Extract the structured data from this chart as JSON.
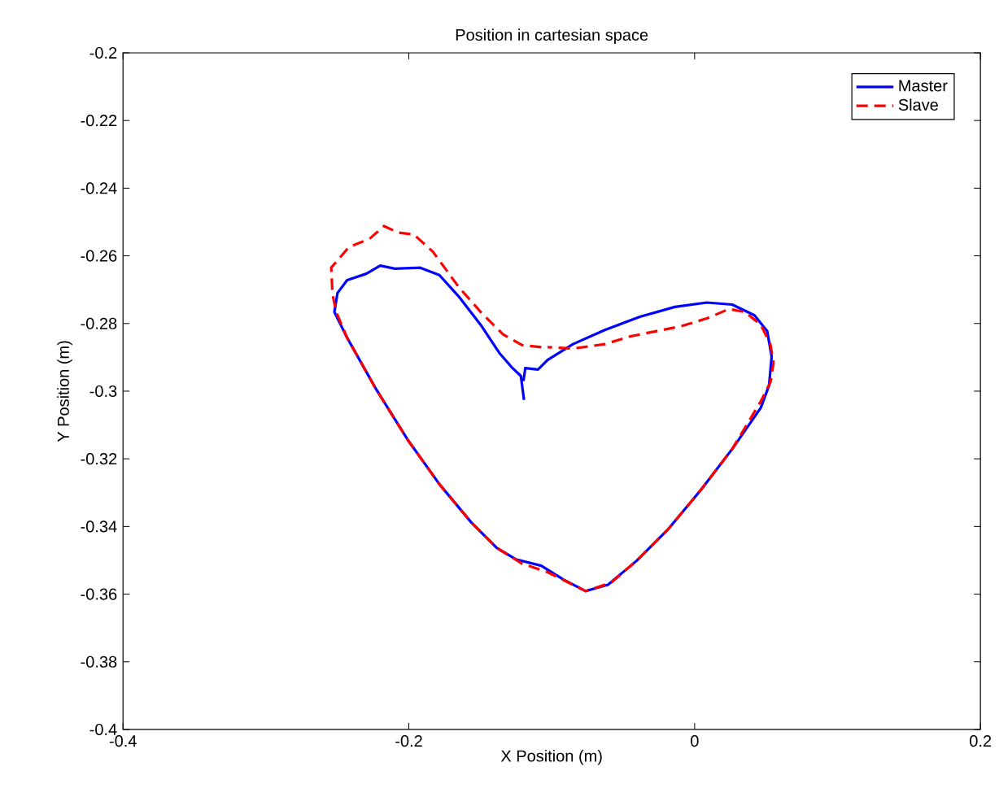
{
  "chart_data": {
    "type": "line",
    "title": "Position in cartesian space",
    "xlabel": "X Position (m)",
    "ylabel": "Y Position (m)",
    "xlim": [
      -0.4,
      0.2
    ],
    "ylim": [
      -0.4,
      -0.2
    ],
    "xticks": [
      -0.4,
      -0.2,
      0,
      0.2
    ],
    "yticks": [
      -0.4,
      -0.38,
      -0.36,
      -0.34,
      -0.32,
      -0.3,
      -0.28,
      -0.26,
      -0.24,
      -0.22,
      -0.2
    ],
    "legend": "top right",
    "grid": false,
    "marker": "none",
    "series": [
      {
        "name": "Master",
        "color": "#0000ff",
        "line_style": "solid",
        "x": [
          -0.1194,
          -0.1216,
          -0.1274,
          -0.1363,
          -0.1497,
          -0.1653,
          -0.1786,
          -0.192,
          -0.2098,
          -0.22,
          -0.2298,
          -0.2432,
          -0.2499,
          -0.2521,
          -0.2432,
          -0.2232,
          -0.2009,
          -0.1786,
          -0.1563,
          -0.1385,
          -0.1252,
          -0.1073,
          -0.0918,
          -0.0762,
          -0.0606,
          -0.0405,
          -0.0183,
          0.004,
          0.0263,
          0.0463,
          0.0521,
          0.0539,
          0.0508,
          0.0419,
          0.0263,
          0.0085,
          -0.0138,
          -0.0383,
          -0.0628,
          -0.0851,
          -0.1029,
          -0.1096,
          -0.1185,
          -0.1198
        ],
        "values": [
          -0.3026,
          -0.2955,
          -0.2932,
          -0.2889,
          -0.2804,
          -0.2719,
          -0.2657,
          -0.2635,
          -0.2638,
          -0.2629,
          -0.2653,
          -0.2672,
          -0.271,
          -0.2766,
          -0.2842,
          -0.2992,
          -0.3143,
          -0.3275,
          -0.3388,
          -0.3463,
          -0.3497,
          -0.3516,
          -0.3557,
          -0.3591,
          -0.3572,
          -0.3501,
          -0.3407,
          -0.3294,
          -0.3171,
          -0.3049,
          -0.2983,
          -0.2898,
          -0.2823,
          -0.2776,
          -0.2744,
          -0.2738,
          -0.2751,
          -0.278,
          -0.2819,
          -0.2861,
          -0.2908,
          -0.2936,
          -0.2932,
          -0.297
        ]
      },
      {
        "name": "Slave",
        "color": "#ff0000",
        "line_style": "dashed",
        "x": [
          -0.1073,
          -0.1207,
          -0.1341,
          -0.1497,
          -0.1653,
          -0.1831,
          -0.1964,
          -0.2076,
          -0.2174,
          -0.2276,
          -0.2419,
          -0.2543,
          -0.2534,
          -0.2508,
          -0.2432,
          -0.2232,
          -0.2009,
          -0.1786,
          -0.1563,
          -0.1385,
          -0.1207,
          -0.1029,
          -0.0762,
          -0.0584,
          -0.0405,
          -0.0183,
          0.004,
          0.0263,
          0.0463,
          0.053,
          0.0552,
          0.053,
          0.0463,
          0.0352,
          0.0241,
          0.0085,
          -0.0094,
          -0.0272,
          -0.045,
          -0.0628,
          -0.0851,
          -0.1029
        ],
        "values": [
          -0.287,
          -0.2864,
          -0.2832,
          -0.2766,
          -0.2691,
          -0.2588,
          -0.2537,
          -0.2531,
          -0.2512,
          -0.255,
          -0.2574,
          -0.2635,
          -0.2714,
          -0.2766,
          -0.2842,
          -0.2992,
          -0.3143,
          -0.3275,
          -0.3388,
          -0.3463,
          -0.351,
          -0.3535,
          -0.3591,
          -0.3566,
          -0.3501,
          -0.3407,
          -0.3294,
          -0.3171,
          -0.303,
          -0.2974,
          -0.2917,
          -0.2861,
          -0.2804,
          -0.2766,
          -0.2757,
          -0.2785,
          -0.2808,
          -0.2823,
          -0.2838,
          -0.2861,
          -0.2874,
          -0.287
        ]
      }
    ]
  }
}
